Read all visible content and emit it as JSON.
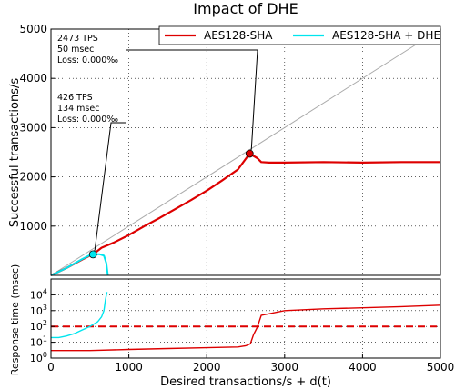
{
  "chart_data": [
    {
      "type": "line",
      "title": "Impact of DHE",
      "xlabel": "",
      "ylabel": "Successful transactions/s",
      "xlim": [
        0,
        5000
      ],
      "ylim": [
        0,
        5000
      ],
      "yticks": [
        "1000",
        "2000",
        "3000",
        "4000",
        "5000"
      ],
      "grid": true,
      "legend": {
        "placement": "top-right",
        "entries": [
          "AES128-SHA",
          "AES128-SHA + DHE"
        ]
      },
      "reference_line": {
        "x": [
          0,
          5000
        ],
        "y": [
          0,
          5000
        ],
        "color": "#aaaaaa"
      },
      "series": [
        {
          "name": "AES128-SHA",
          "color": "#dd0000",
          "x": [
            0,
            200,
            400,
            550,
            650,
            800,
            1000,
            1200,
            1400,
            1600,
            1800,
            2000,
            2200,
            2400,
            2550,
            2650,
            2700,
            2800,
            3000,
            3500,
            4000,
            4500,
            5000
          ],
          "y": [
            0,
            150,
            320,
            440,
            560,
            660,
            820,
            1000,
            1170,
            1350,
            1530,
            1720,
            1930,
            2150,
            2473,
            2380,
            2300,
            2290,
            2290,
            2300,
            2290,
            2300,
            2300
          ]
        },
        {
          "name": "AES128-SHA + DHE",
          "color": "#00e5ee",
          "x": [
            0,
            200,
            400,
            500,
            550,
            620,
            680,
            710,
            730
          ],
          "y": [
            0,
            150,
            330,
            410,
            426,
            430,
            400,
            250,
            0
          ]
        }
      ],
      "annotations": [
        {
          "lines": [
            "2473 TPS",
            "50 msec",
            "Loss: 0.000‰"
          ],
          "point": [
            2550,
            2473
          ],
          "color": "#dd0000"
        },
        {
          "lines": [
            "426 TPS",
            "134 msec",
            "Loss: 0.000‰"
          ],
          "point": [
            540,
            426
          ],
          "color": "#00e5ee"
        }
      ]
    },
    {
      "type": "line",
      "xlabel": "Desired transactions/s + d(t)",
      "ylabel": "Response time (msec)",
      "xlim": [
        0,
        5000
      ],
      "ylim": [
        1,
        100000
      ],
      "yscale": "log",
      "xticks": [
        "0",
        "1000",
        "2000",
        "3000",
        "4000",
        "5000"
      ],
      "yticks": [
        "10^0",
        "10^1",
        "10^2",
        "10^3",
        "10^4"
      ],
      "grid": true,
      "threshold": {
        "y": 100,
        "color": "#dd0000",
        "style": "dashed"
      },
      "series": [
        {
          "name": "AES128-SHA",
          "color": "#dd0000",
          "x": [
            0,
            500,
            1000,
            1500,
            2000,
            2400,
            2500,
            2560,
            2600,
            2650,
            2700,
            3000,
            3500,
            4000,
            4500,
            5000
          ],
          "y": [
            3,
            3,
            3.5,
            4,
            4.5,
            5,
            6,
            8,
            30,
            90,
            500,
            1000,
            1300,
            1500,
            1800,
            2200
          ]
        },
        {
          "name": "AES128-SHA + DHE",
          "color": "#00e5ee",
          "x": [
            0,
            100,
            200,
            300,
            400,
            500,
            600,
            650,
            680,
            700,
            720
          ],
          "y": [
            20,
            20,
            25,
            35,
            60,
            100,
            200,
            400,
            1000,
            5000,
            15000
          ]
        }
      ]
    }
  ]
}
